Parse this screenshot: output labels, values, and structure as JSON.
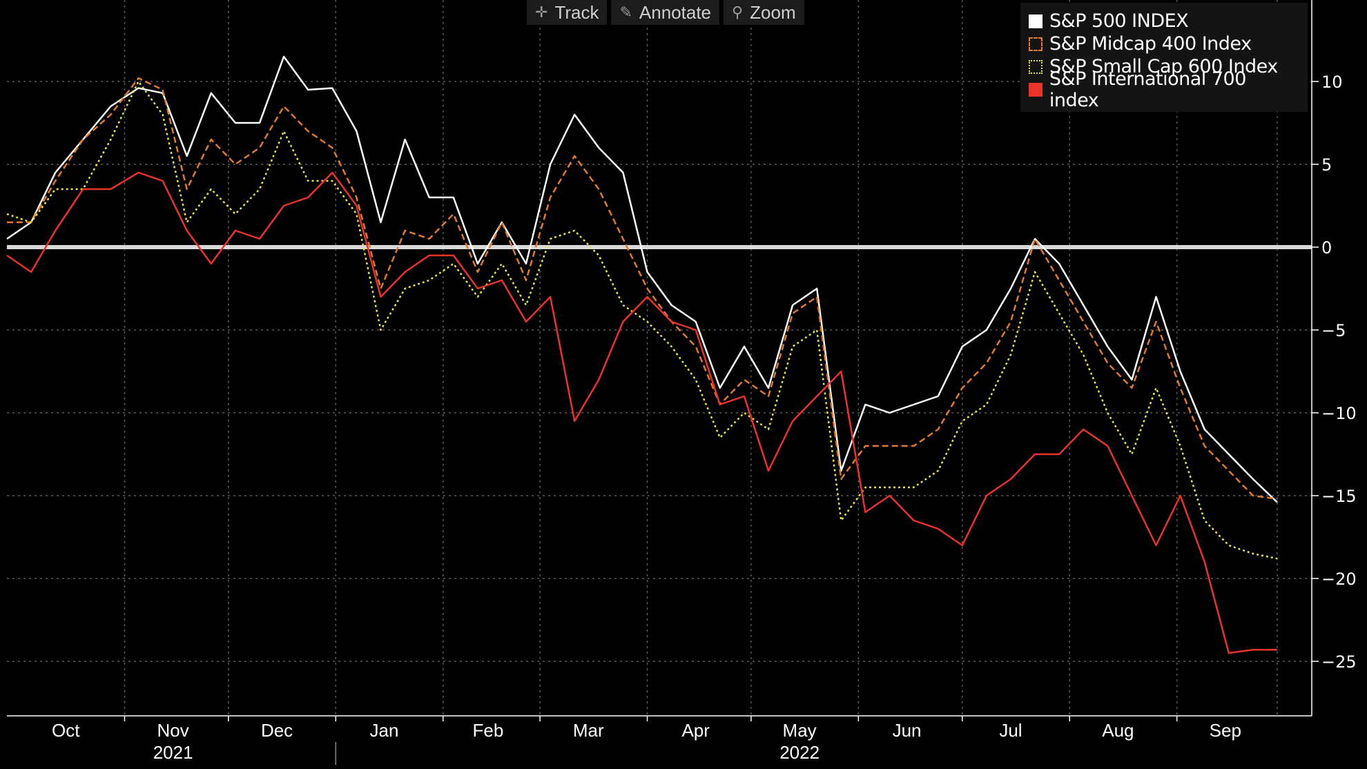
{
  "toolbar": {
    "track_label": "Track",
    "annotate_label": "Annotate",
    "zoom_label": "Zoom"
  },
  "legend": {
    "items": [
      {
        "label": "S&P 500 INDEX",
        "color": "#ffffff",
        "style": "solid"
      },
      {
        "label": "S&P Midcap 400 Index",
        "color": "#e07a2e",
        "style": "dashed"
      },
      {
        "label": "S&P Small Cap 600 Index",
        "color": "#e8e34a",
        "style": "dotted"
      },
      {
        "label": "S&P International 700 index",
        "color": "#e8342a",
        "style": "solid"
      }
    ]
  },
  "chart_data": {
    "type": "line",
    "title": "",
    "xlabel": "",
    "ylabel": "",
    "ylim": [
      -28,
      15
    ],
    "yticks": [
      10,
      5,
      0,
      -5,
      -10,
      -15,
      -20,
      -25
    ],
    "y_axis_position": "right",
    "grid": true,
    "legend_position": "top-right",
    "reference_line": 0,
    "x_range": [
      "2021-09-28",
      "2022-09-30"
    ],
    "month_labels": [
      {
        "label": "Oct",
        "date": "2021-10-15"
      },
      {
        "label": "Nov",
        "date": "2021-11-15"
      },
      {
        "label": "Dec",
        "date": "2021-12-15"
      },
      {
        "label": "Jan",
        "date": "2022-01-15"
      },
      {
        "label": "Feb",
        "date": "2022-02-14"
      },
      {
        "label": "Mar",
        "date": "2022-03-15"
      },
      {
        "label": "Apr",
        "date": "2022-04-15"
      },
      {
        "label": "May",
        "date": "2022-05-15"
      },
      {
        "label": "Jun",
        "date": "2022-06-15"
      },
      {
        "label": "Jul",
        "date": "2022-07-15"
      },
      {
        "label": "Aug",
        "date": "2022-08-15"
      },
      {
        "label": "Sep",
        "date": "2022-09-15"
      }
    ],
    "year_labels": [
      {
        "label": "2021",
        "date": "2021-11-15"
      },
      {
        "label": "2022",
        "date": "2022-05-15"
      }
    ],
    "series": [
      {
        "name": "S&P 500 INDEX",
        "color": "#ffffff",
        "dash": "solid",
        "x": [
          "2021-09-28",
          "2021-10-05",
          "2021-10-12",
          "2021-10-20",
          "2021-10-28",
          "2021-11-05",
          "2021-11-12",
          "2021-11-19",
          "2021-11-26",
          "2021-12-03",
          "2021-12-10",
          "2021-12-17",
          "2021-12-24",
          "2021-12-31",
          "2022-01-07",
          "2022-01-14",
          "2022-01-21",
          "2022-01-28",
          "2022-02-04",
          "2022-02-11",
          "2022-02-18",
          "2022-02-25",
          "2022-03-04",
          "2022-03-11",
          "2022-03-18",
          "2022-03-25",
          "2022-04-01",
          "2022-04-08",
          "2022-04-15",
          "2022-04-22",
          "2022-04-29",
          "2022-05-06",
          "2022-05-13",
          "2022-05-20",
          "2022-05-27",
          "2022-06-03",
          "2022-06-10",
          "2022-06-17",
          "2022-06-24",
          "2022-07-01",
          "2022-07-08",
          "2022-07-15",
          "2022-07-22",
          "2022-07-29",
          "2022-08-05",
          "2022-08-12",
          "2022-08-19",
          "2022-08-26",
          "2022-09-02",
          "2022-09-09",
          "2022-09-16",
          "2022-09-23",
          "2022-09-30"
        ],
        "values": [
          0.5,
          1.5,
          4.5,
          6.5,
          8.5,
          9.6,
          9.3,
          5.5,
          9.3,
          7.5,
          7.5,
          11.5,
          9.5,
          9.6,
          7.0,
          1.5,
          6.5,
          3.0,
          3.0,
          -1.0,
          1.5,
          -1.0,
          5.0,
          8.0,
          6.0,
          4.5,
          -1.5,
          -3.5,
          -4.5,
          -8.5,
          -6.0,
          -8.5,
          -3.5,
          -2.5,
          -13.5,
          -9.5,
          -10.0,
          -9.5,
          -9.0,
          -6.0,
          -5.0,
          -2.5,
          0.5,
          -1.0,
          -3.5,
          -6.0,
          -8.0,
          -3.0,
          -7.5,
          -11.0,
          -12.5,
          -14.0,
          -15.4
        ]
      },
      {
        "name": "S&P Midcap 400 Index",
        "color": "#e07a2e",
        "dash": "dashed",
        "x": [
          "2021-09-28",
          "2021-10-05",
          "2021-10-12",
          "2021-10-20",
          "2021-10-28",
          "2021-11-05",
          "2021-11-12",
          "2021-11-19",
          "2021-11-26",
          "2021-12-03",
          "2021-12-10",
          "2021-12-17",
          "2021-12-24",
          "2021-12-31",
          "2022-01-07",
          "2022-01-14",
          "2022-01-21",
          "2022-01-28",
          "2022-02-04",
          "2022-02-11",
          "2022-02-18",
          "2022-02-25",
          "2022-03-04",
          "2022-03-11",
          "2022-03-18",
          "2022-03-25",
          "2022-04-01",
          "2022-04-08",
          "2022-04-15",
          "2022-04-22",
          "2022-04-29",
          "2022-05-06",
          "2022-05-13",
          "2022-05-20",
          "2022-05-27",
          "2022-06-03",
          "2022-06-10",
          "2022-06-17",
          "2022-06-24",
          "2022-07-01",
          "2022-07-08",
          "2022-07-15",
          "2022-07-22",
          "2022-07-29",
          "2022-08-05",
          "2022-08-12",
          "2022-08-19",
          "2022-08-26",
          "2022-09-02",
          "2022-09-09",
          "2022-09-16",
          "2022-09-23",
          "2022-09-30"
        ],
        "values": [
          1.5,
          1.5,
          4.0,
          6.5,
          8.0,
          10.2,
          9.5,
          3.5,
          6.5,
          5.0,
          6.0,
          8.5,
          7.0,
          6.0,
          3.0,
          -2.5,
          1.0,
          0.5,
          2.0,
          -1.5,
          1.5,
          -2.0,
          3.0,
          5.5,
          3.5,
          0.5,
          -2.5,
          -4.5,
          -6.0,
          -9.5,
          -8.0,
          -9.0,
          -4.0,
          -3.0,
          -14.0,
          -12.0,
          -12.0,
          -12.0,
          -11.0,
          -8.5,
          -7.0,
          -4.5,
          0.5,
          -2.0,
          -4.5,
          -7.0,
          -8.5,
          -4.5,
          -8.5,
          -12.0,
          -13.5,
          -15.0,
          -15.2
        ]
      },
      {
        "name": "S&P Small Cap 600 Index",
        "color": "#e8e34a",
        "dash": "dotted",
        "x": [
          "2021-09-28",
          "2021-10-05",
          "2021-10-12",
          "2021-10-20",
          "2021-10-28",
          "2021-11-05",
          "2021-11-12",
          "2021-11-19",
          "2021-11-26",
          "2021-12-03",
          "2021-12-10",
          "2021-12-17",
          "2021-12-24",
          "2021-12-31",
          "2022-01-07",
          "2022-01-14",
          "2022-01-21",
          "2022-01-28",
          "2022-02-04",
          "2022-02-11",
          "2022-02-18",
          "2022-02-25",
          "2022-03-04",
          "2022-03-11",
          "2022-03-18",
          "2022-03-25",
          "2022-04-01",
          "2022-04-08",
          "2022-04-15",
          "2022-04-22",
          "2022-04-29",
          "2022-05-06",
          "2022-05-13",
          "2022-05-20",
          "2022-05-27",
          "2022-06-03",
          "2022-06-10",
          "2022-06-17",
          "2022-06-24",
          "2022-07-01",
          "2022-07-08",
          "2022-07-15",
          "2022-07-22",
          "2022-07-29",
          "2022-08-05",
          "2022-08-12",
          "2022-08-19",
          "2022-08-26",
          "2022-09-02",
          "2022-09-09",
          "2022-09-16",
          "2022-09-23",
          "2022-09-30"
        ],
        "values": [
          2.0,
          1.5,
          3.5,
          3.5,
          6.5,
          10.0,
          8.0,
          1.5,
          3.5,
          2.0,
          3.5,
          7.0,
          4.0,
          4.0,
          2.0,
          -5.0,
          -2.5,
          -2.0,
          -1.0,
          -3.0,
          -1.0,
          -3.5,
          0.5,
          1.0,
          -0.5,
          -3.5,
          -4.5,
          -6.0,
          -8.0,
          -11.5,
          -10.0,
          -11.0,
          -6.0,
          -5.0,
          -16.5,
          -14.5,
          -14.5,
          -14.5,
          -13.5,
          -10.5,
          -9.5,
          -6.5,
          -1.5,
          -4.0,
          -6.5,
          -10.0,
          -12.5,
          -8.5,
          -12.0,
          -16.5,
          -18.0,
          -18.5,
          -18.8
        ]
      },
      {
        "name": "S&P International 700 index",
        "color": "#e8342a",
        "dash": "solid",
        "x": [
          "2021-09-28",
          "2021-10-05",
          "2021-10-12",
          "2021-10-20",
          "2021-10-28",
          "2021-11-05",
          "2021-11-12",
          "2021-11-19",
          "2021-11-26",
          "2021-12-03",
          "2021-12-10",
          "2021-12-17",
          "2021-12-24",
          "2021-12-31",
          "2022-01-07",
          "2022-01-14",
          "2022-01-21",
          "2022-01-28",
          "2022-02-04",
          "2022-02-11",
          "2022-02-18",
          "2022-02-25",
          "2022-03-04",
          "2022-03-11",
          "2022-03-18",
          "2022-03-25",
          "2022-04-01",
          "2022-04-08",
          "2022-04-15",
          "2022-04-22",
          "2022-04-29",
          "2022-05-06",
          "2022-05-13",
          "2022-05-20",
          "2022-05-27",
          "2022-06-03",
          "2022-06-10",
          "2022-06-17",
          "2022-06-24",
          "2022-07-01",
          "2022-07-08",
          "2022-07-15",
          "2022-07-22",
          "2022-07-29",
          "2022-08-05",
          "2022-08-12",
          "2022-08-19",
          "2022-08-26",
          "2022-09-02",
          "2022-09-09",
          "2022-09-16",
          "2022-09-23",
          "2022-09-30"
        ],
        "values": [
          -0.5,
          -1.5,
          1.0,
          3.5,
          3.5,
          4.5,
          4.0,
          1.0,
          -1.0,
          1.0,
          0.5,
          2.5,
          3.0,
          4.5,
          2.5,
          -3.0,
          -1.5,
          -0.5,
          -0.5,
          -2.5,
          -2.0,
          -4.5,
          -3.0,
          -10.5,
          -8.0,
          -4.5,
          -3.0,
          -4.5,
          -5.0,
          -9.5,
          -9.0,
          -13.5,
          -10.5,
          -9.0,
          -7.5,
          -16.0,
          -15.0,
          -16.5,
          -17.0,
          -18.0,
          -15.0,
          -14.0,
          -12.5,
          -12.5,
          -11.0,
          -12.0,
          -15.0,
          -18.0,
          -15.0,
          -19.0,
          -24.5,
          -24.3,
          -24.3
        ]
      }
    ]
  }
}
